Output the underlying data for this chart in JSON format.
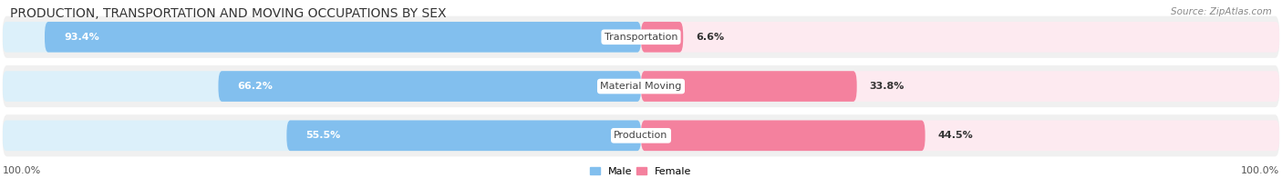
{
  "title": "PRODUCTION, TRANSPORTATION AND MOVING OCCUPATIONS BY SEX",
  "source": "Source: ZipAtlas.com",
  "categories": [
    "Transportation",
    "Material Moving",
    "Production"
  ],
  "male_values": [
    93.4,
    66.2,
    55.5
  ],
  "female_values": [
    6.6,
    33.8,
    44.5
  ],
  "male_color": "#82BFEE",
  "female_color": "#F4819E",
  "male_bg_color": "#DCF0FA",
  "female_bg_color": "#FDEAF0",
  "row_bg_color": "#F0F0F0",
  "title_fontsize": 10,
  "label_fontsize": 8,
  "value_fontsize": 8,
  "tick_fontsize": 8,
  "source_fontsize": 7.5,
  "background_color": "#FFFFFF",
  "left_label": "100.0%",
  "right_label": "100.0%"
}
